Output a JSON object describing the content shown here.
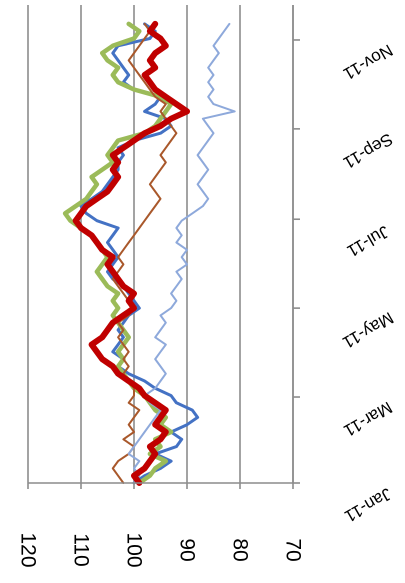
{
  "chart_data": {
    "type": "line",
    "orientation": "rotated-90-clockwise",
    "title": "",
    "xlabel": "",
    "ylabel": "",
    "x_ticks": [
      "Jan-11",
      "Mar-11",
      "May-11",
      "Jul-11",
      "Sep-11",
      "Nov-11"
    ],
    "x_range": [
      "2011-01-01",
      "2011-12-31"
    ],
    "y_ticks": [
      120,
      110,
      100,
      90,
      80,
      70
    ],
    "ylim": [
      70,
      120
    ],
    "grid": true,
    "legend": "none",
    "series": [
      {
        "color": "#4472c4",
        "width": 3,
        "values": [
          [
            0,
            100
          ],
          [
            5,
            98
          ],
          [
            10,
            95
          ],
          [
            15,
            93
          ],
          [
            20,
            96
          ],
          [
            25,
            92
          ],
          [
            30,
            91
          ],
          [
            35,
            93
          ],
          [
            40,
            90
          ],
          [
            45,
            88
          ],
          [
            50,
            89
          ],
          [
            55,
            92
          ],
          [
            60,
            93
          ],
          [
            65,
            96
          ],
          [
            70,
            98
          ],
          [
            75,
            101
          ],
          [
            80,
            103
          ],
          [
            85,
            102
          ],
          [
            90,
            104
          ],
          [
            95,
            103
          ],
          [
            100,
            102
          ],
          [
            105,
            103
          ],
          [
            110,
            102
          ],
          [
            115,
            101
          ],
          [
            120,
            99
          ],
          [
            125,
            100
          ],
          [
            130,
            101
          ],
          [
            135,
            102
          ],
          [
            140,
            104
          ],
          [
            145,
            105
          ],
          [
            150,
            104
          ],
          [
            155,
            103
          ],
          [
            160,
            104
          ],
          [
            165,
            105
          ],
          [
            170,
            104
          ],
          [
            175,
            103
          ],
          [
            180,
            107
          ],
          [
            185,
            109
          ],
          [
            190,
            110
          ],
          [
            195,
            108
          ],
          [
            200,
            106
          ],
          [
            205,
            105
          ],
          [
            210,
            104
          ],
          [
            215,
            103
          ],
          [
            220,
            103
          ],
          [
            225,
            102
          ],
          [
            230,
            103
          ],
          [
            235,
            100
          ],
          [
            240,
            95
          ],
          [
            245,
            93
          ],
          [
            250,
            94
          ],
          [
            255,
            98
          ],
          [
            260,
            96
          ],
          [
            265,
            95
          ],
          [
            270,
            100
          ],
          [
            275,
            102
          ],
          [
            280,
            101
          ],
          [
            285,
            102
          ],
          [
            290,
            103
          ],
          [
            295,
            104
          ],
          [
            300,
            103
          ],
          [
            305,
            97
          ],
          [
            310,
            96
          ],
          [
            315,
            98
          ]
        ]
      },
      {
        "color": "#9bbb59",
        "width": 4.5,
        "values": [
          [
            0,
            99
          ],
          [
            5,
            97
          ],
          [
            10,
            96
          ],
          [
            15,
            94
          ],
          [
            20,
            97
          ],
          [
            25,
            95
          ],
          [
            30,
            96
          ],
          [
            35,
            93
          ],
          [
            40,
            95
          ],
          [
            45,
            94
          ],
          [
            50,
            96
          ],
          [
            55,
            97
          ],
          [
            60,
            98
          ],
          [
            65,
            100
          ],
          [
            70,
            101
          ],
          [
            75,
            102
          ],
          [
            80,
            103
          ],
          [
            85,
            102
          ],
          [
            90,
            103
          ],
          [
            95,
            102
          ],
          [
            100,
            101
          ],
          [
            105,
            102
          ],
          [
            110,
            103
          ],
          [
            115,
            104
          ],
          [
            120,
            103
          ],
          [
            125,
            104
          ],
          [
            130,
            103
          ],
          [
            135,
            105
          ],
          [
            140,
            106
          ],
          [
            145,
            107
          ],
          [
            150,
            106
          ],
          [
            155,
            105
          ],
          [
            160,
            106
          ],
          [
            165,
            107
          ],
          [
            170,
            108
          ],
          [
            175,
            110
          ],
          [
            180,
            112
          ],
          [
            185,
            113
          ],
          [
            190,
            111
          ],
          [
            195,
            109
          ],
          [
            200,
            108
          ],
          [
            205,
            107
          ],
          [
            210,
            108
          ],
          [
            215,
            106
          ],
          [
            220,
            104
          ],
          [
            225,
            105
          ],
          [
            230,
            104
          ],
          [
            235,
            103
          ],
          [
            240,
            98
          ],
          [
            245,
            96
          ],
          [
            250,
            95
          ],
          [
            255,
            94
          ],
          [
            260,
            93
          ],
          [
            265,
            95
          ],
          [
            270,
            100
          ],
          [
            275,
            103
          ],
          [
            280,
            104
          ],
          [
            285,
            103
          ],
          [
            290,
            105
          ],
          [
            295,
            106
          ],
          [
            300,
            104
          ],
          [
            305,
            100
          ],
          [
            310,
            99
          ],
          [
            315,
            101
          ]
        ]
      },
      {
        "color": "#a9582b",
        "width": 2,
        "values": [
          [
            0,
            102
          ],
          [
            5,
            103
          ],
          [
            10,
            104
          ],
          [
            15,
            103
          ],
          [
            20,
            101
          ],
          [
            25,
            100
          ],
          [
            30,
            102
          ],
          [
            35,
            100
          ],
          [
            40,
            101
          ],
          [
            45,
            100
          ],
          [
            50,
            99
          ],
          [
            55,
            101
          ],
          [
            60,
            100
          ],
          [
            65,
            100
          ],
          [
            70,
            101
          ],
          [
            75,
            102
          ],
          [
            80,
            101
          ],
          [
            85,
            102
          ],
          [
            90,
            101
          ],
          [
            95,
            102
          ],
          [
            100,
            103
          ],
          [
            105,
            102
          ],
          [
            110,
            103
          ],
          [
            115,
            101
          ],
          [
            120,
            100
          ],
          [
            125,
            101
          ],
          [
            130,
            102
          ],
          [
            135,
            103
          ],
          [
            140,
            104
          ],
          [
            145,
            103
          ],
          [
            150,
            102
          ],
          [
            155,
            103
          ],
          [
            160,
            102
          ],
          [
            165,
            101
          ],
          [
            170,
            100
          ],
          [
            175,
            99
          ],
          [
            180,
            98
          ],
          [
            185,
            97
          ],
          [
            190,
            96
          ],
          [
            195,
            95
          ],
          [
            200,
            96
          ],
          [
            205,
            97
          ],
          [
            210,
            96
          ],
          [
            215,
            95
          ],
          [
            220,
            94
          ],
          [
            225,
            95
          ],
          [
            230,
            94
          ],
          [
            235,
            93
          ],
          [
            240,
            92
          ],
          [
            245,
            93
          ],
          [
            250,
            94
          ],
          [
            255,
            95
          ],
          [
            260,
            94
          ],
          [
            265,
            96
          ],
          [
            270,
            97
          ],
          [
            275,
            98
          ],
          [
            280,
            99
          ],
          [
            285,
            100
          ],
          [
            290,
            101
          ],
          [
            295,
            100
          ],
          [
            300,
            99
          ],
          [
            305,
            98
          ],
          [
            310,
            97
          ],
          [
            315,
            98
          ]
        ]
      },
      {
        "color": "#8ea9db",
        "width": 2,
        "values": [
          [
            0,
            100
          ],
          [
            5,
            99
          ],
          [
            10,
            100
          ],
          [
            15,
            99
          ],
          [
            20,
            101
          ],
          [
            25,
            100
          ],
          [
            30,
            99
          ],
          [
            35,
            98
          ],
          [
            40,
            97
          ],
          [
            45,
            96
          ],
          [
            50,
            95
          ],
          [
            55,
            97
          ],
          [
            60,
            98
          ],
          [
            65,
            96
          ],
          [
            70,
            95
          ],
          [
            75,
            94
          ],
          [
            80,
            95
          ],
          [
            85,
            96
          ],
          [
            90,
            95
          ],
          [
            95,
            94
          ],
          [
            100,
            96
          ],
          [
            105,
            95
          ],
          [
            110,
            94
          ],
          [
            115,
            95
          ],
          [
            120,
            93
          ],
          [
            125,
            92
          ],
          [
            130,
            93
          ],
          [
            135,
            92
          ],
          [
            140,
            91
          ],
          [
            145,
            92
          ],
          [
            150,
            90
          ],
          [
            155,
            91
          ],
          [
            160,
            90
          ],
          [
            165,
            92
          ],
          [
            170,
            91
          ],
          [
            175,
            92
          ],
          [
            180,
            91
          ],
          [
            185,
            89
          ],
          [
            190,
            87
          ],
          [
            195,
            86
          ],
          [
            200,
            87
          ],
          [
            205,
            88
          ],
          [
            210,
            87
          ],
          [
            215,
            86
          ],
          [
            220,
            87
          ],
          [
            225,
            88
          ],
          [
            230,
            87
          ],
          [
            235,
            86
          ],
          [
            240,
            85
          ],
          [
            245,
            86
          ],
          [
            250,
            87
          ],
          [
            255,
            81
          ],
          [
            260,
            85
          ],
          [
            265,
            86
          ],
          [
            270,
            85
          ],
          [
            275,
            86
          ],
          [
            280,
            85
          ],
          [
            285,
            86
          ],
          [
            290,
            85
          ],
          [
            295,
            84
          ],
          [
            300,
            85
          ],
          [
            305,
            84
          ],
          [
            310,
            83
          ],
          [
            315,
            82
          ]
        ]
      },
      {
        "color": "#c00000",
        "width": 6,
        "values": [
          [
            0,
            99
          ],
          [
            5,
            100
          ],
          [
            10,
            98
          ],
          [
            15,
            97
          ],
          [
            20,
            96
          ],
          [
            25,
            97
          ],
          [
            30,
            95
          ],
          [
            35,
            94
          ],
          [
            40,
            96
          ],
          [
            45,
            95
          ],
          [
            50,
            94
          ],
          [
            55,
            96
          ],
          [
            60,
            98
          ],
          [
            65,
            99
          ],
          [
            70,
            101
          ],
          [
            75,
            103
          ],
          [
            80,
            104
          ],
          [
            85,
            106
          ],
          [
            90,
            107
          ],
          [
            95,
            108
          ],
          [
            100,
            106
          ],
          [
            105,
            105
          ],
          [
            110,
            104
          ],
          [
            115,
            102
          ],
          [
            120,
            100
          ],
          [
            125,
            101
          ],
          [
            130,
            100
          ],
          [
            135,
            102
          ],
          [
            140,
            103
          ],
          [
            145,
            104
          ],
          [
            150,
            105
          ],
          [
            155,
            104
          ],
          [
            160,
            106
          ],
          [
            165,
            107
          ],
          [
            170,
            108
          ],
          [
            175,
            110
          ],
          [
            180,
            111
          ],
          [
            185,
            110
          ],
          [
            190,
            109
          ],
          [
            195,
            107
          ],
          [
            200,
            105
          ],
          [
            205,
            104
          ],
          [
            210,
            103
          ],
          [
            215,
            104
          ],
          [
            220,
            103
          ],
          [
            225,
            104
          ],
          [
            230,
            102
          ],
          [
            235,
            100
          ],
          [
            240,
            98
          ],
          [
            245,
            95
          ],
          [
            250,
            93
          ],
          [
            255,
            90
          ],
          [
            260,
            92
          ],
          [
            265,
            94
          ],
          [
            270,
            96
          ],
          [
            275,
            97
          ],
          [
            280,
            98
          ],
          [
            285,
            96
          ],
          [
            290,
            97
          ],
          [
            295,
            96
          ],
          [
            300,
            94
          ],
          [
            305,
            95
          ],
          [
            310,
            97
          ],
          [
            315,
            96
          ]
        ]
      }
    ]
  }
}
